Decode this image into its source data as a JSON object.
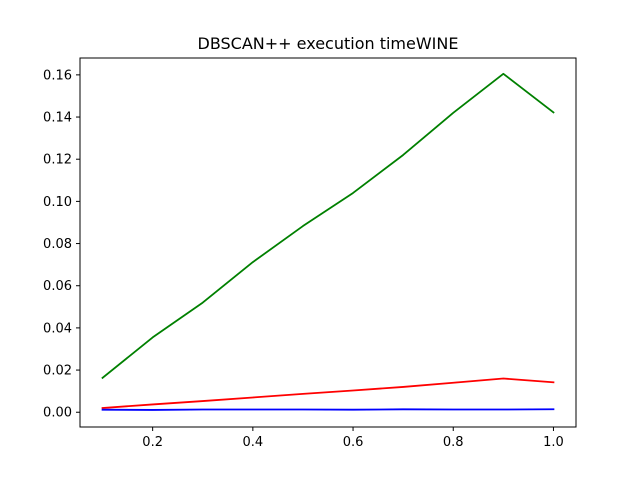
{
  "chart_data": {
    "type": "line",
    "title": "DBSCAN++  execution timeWINE",
    "xlabel": "",
    "ylabel": "",
    "x": [
      0.1,
      0.2,
      0.3,
      0.4,
      0.5,
      0.6,
      0.7,
      0.8,
      0.9,
      1.0
    ],
    "xlim": [
      0.055,
      1.045
    ],
    "ylim": [
      -0.007,
      0.168
    ],
    "x_ticks": [
      0.2,
      0.4,
      0.6,
      0.8,
      1.0
    ],
    "x_tick_labels": [
      "0.2",
      "0.4",
      "0.6",
      "0.8",
      "1.0"
    ],
    "y_ticks": [
      0.0,
      0.02,
      0.04,
      0.06,
      0.08,
      0.1,
      0.12,
      0.14,
      0.16
    ],
    "y_tick_labels": [
      "0.00",
      "0.02",
      "0.04",
      "0.06",
      "0.08",
      "0.10",
      "0.12",
      "0.14",
      "0.16"
    ],
    "grid": false,
    "legend": false,
    "series": [
      {
        "color": "#008000",
        "values": [
          0.0163,
          0.0355,
          0.052,
          0.0712,
          0.0883,
          0.104,
          0.122,
          0.142,
          0.1605,
          0.1422
        ]
      },
      {
        "color": "#ff0000",
        "values": [
          0.002,
          0.0037,
          0.0053,
          0.007,
          0.0087,
          0.0103,
          0.012,
          0.014,
          0.016,
          0.0142
        ]
      },
      {
        "color": "#0000ff",
        "values": [
          0.0012,
          0.0011,
          0.0013,
          0.0013,
          0.0013,
          0.0012,
          0.0014,
          0.0013,
          0.0013,
          0.0014
        ]
      }
    ]
  }
}
